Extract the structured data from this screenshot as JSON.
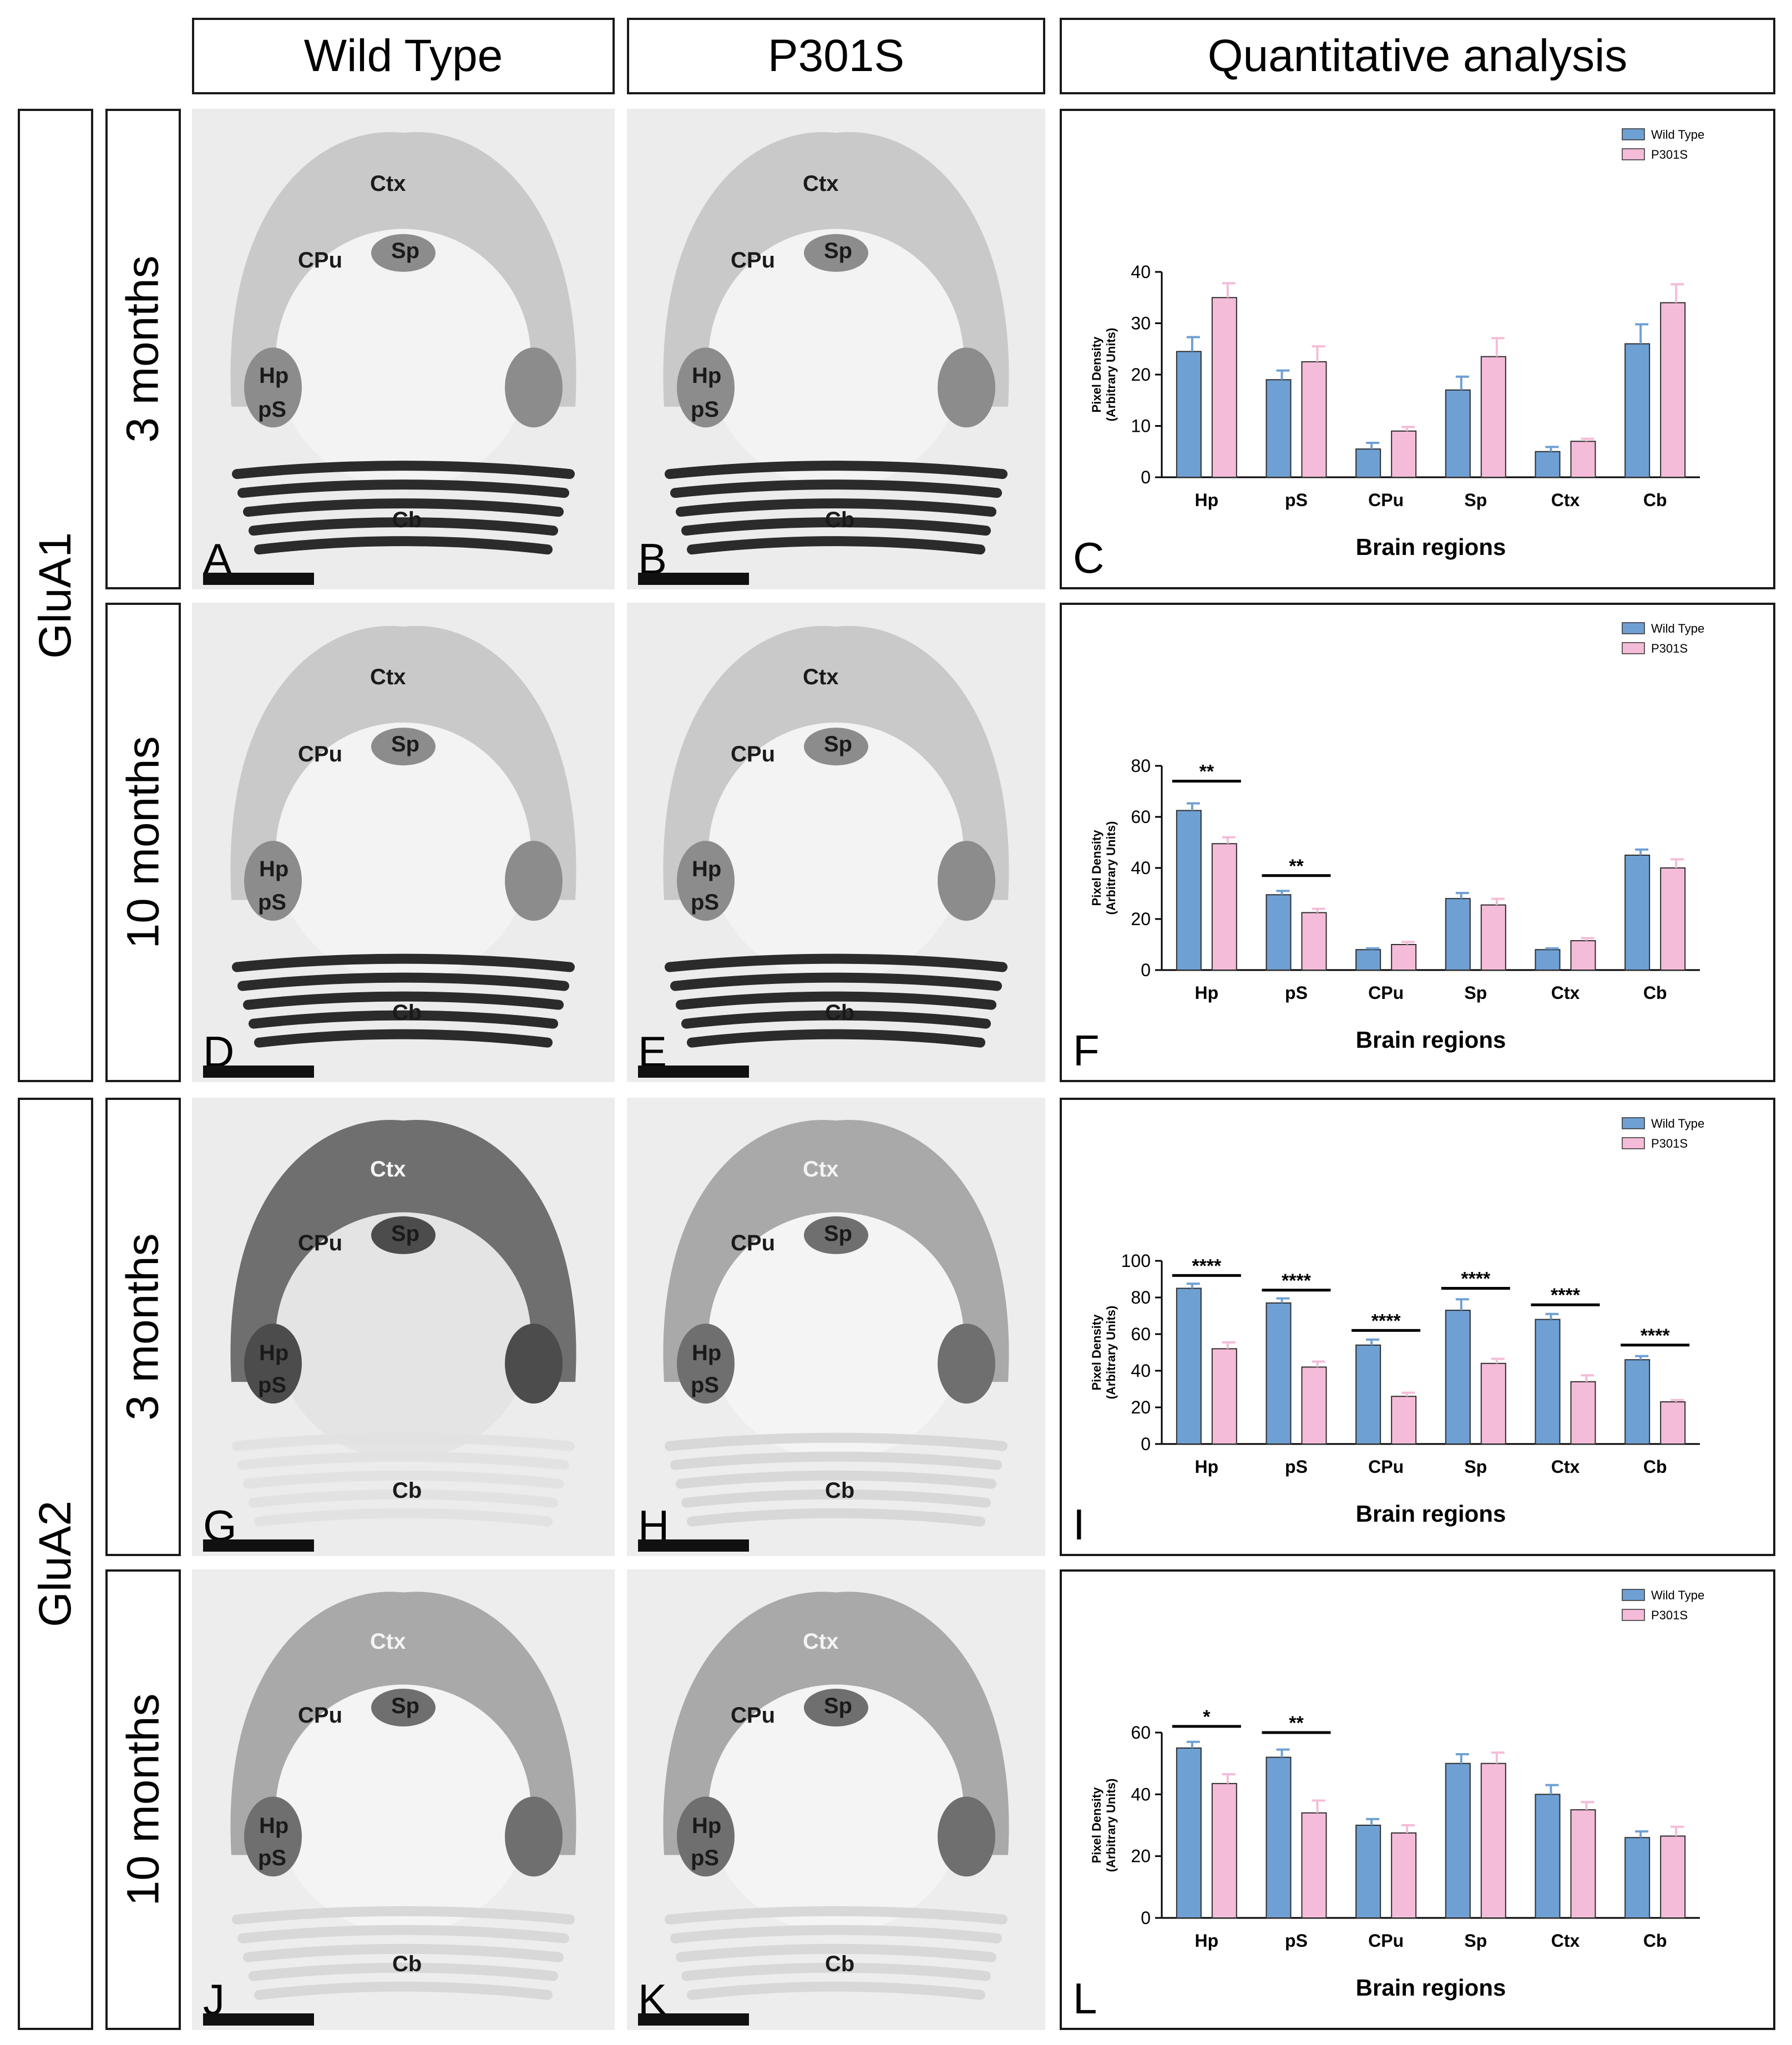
{
  "columns": [
    "Wild Type",
    "P301S",
    "Quantitative analysis"
  ],
  "groups": [
    "GluA1",
    "GluA2"
  ],
  "ages": [
    "3 months",
    "10 months",
    "3 months",
    "10 months"
  ],
  "colors": {
    "wild_type": "#6fa0d4",
    "p301s": "#f4bcd8",
    "bar_stroke": "#2e2e2e"
  },
  "micrographs": [
    {
      "letter": "A",
      "tone": "light",
      "labels": {
        "ctx": "Ctx",
        "cpu": "CPu",
        "sp": "Sp",
        "hp": "Hp",
        "ps": "pS",
        "cb": "Cb"
      }
    },
    {
      "letter": "B",
      "tone": "light",
      "labels": {
        "ctx": "Ctx",
        "cpu": "CPu",
        "sp": "Sp",
        "hp": "Hp",
        "ps": "pS",
        "cb": "Cb"
      }
    },
    {
      "letter": "D",
      "tone": "light",
      "labels": {
        "ctx": "Ctx",
        "cpu": "CPu",
        "sp": "Sp",
        "hp": "Hp",
        "ps": "pS",
        "cb": "Cb"
      }
    },
    {
      "letter": "E",
      "tone": "light",
      "labels": {
        "ctx": "Ctx",
        "cpu": "CPu",
        "sp": "Sp",
        "hp": "Hp",
        "ps": "pS",
        "cb": "Cb"
      }
    },
    {
      "letter": "G",
      "tone": "dark",
      "labels": {
        "ctx": "Ctx",
        "cpu": "CPu",
        "sp": "Sp",
        "hp": "Hp",
        "ps": "pS",
        "cb": "Cb"
      }
    },
    {
      "letter": "H",
      "tone": "medium",
      "labels": {
        "ctx": "Ctx",
        "cpu": "CPu",
        "sp": "Sp",
        "hp": "Hp",
        "ps": "pS",
        "cb": "Cb"
      }
    },
    {
      "letter": "J",
      "tone": "medium",
      "labels": {
        "ctx": "Ctx",
        "cpu": "CPu",
        "sp": "Sp",
        "hp": "Hp",
        "ps": "pS",
        "cb": "Cb"
      }
    },
    {
      "letter": "K",
      "tone": "medium",
      "labels": {
        "ctx": "Ctx",
        "cpu": "CPu",
        "sp": "Sp",
        "hp": "Hp",
        "ps": "pS",
        "cb": "Cb"
      }
    }
  ],
  "chart_data": [
    {
      "panel": "C",
      "type": "bar",
      "categories": [
        "Hp",
        "pS",
        "CPu",
        "Sp",
        "Ctx",
        "Cb"
      ],
      "series": [
        {
          "name": "Wild Type",
          "values": [
            24.5,
            19,
            5.5,
            17,
            5,
            26
          ],
          "errors": [
            2.8,
            1.8,
            1.2,
            2.6,
            0.9,
            3.8
          ]
        },
        {
          "name": "P301S",
          "values": [
            35,
            22.5,
            9,
            23.5,
            7,
            34
          ],
          "errors": [
            2.8,
            3,
            0.8,
            3.6,
            0.5,
            3.6
          ]
        }
      ],
      "significance": [],
      "xlabel": "Brain regions",
      "ylabel": "Pixel Density (Arbitrary Units)",
      "ylabel_lines": [
        "Pixel Density",
        "(Arbitrary Units)"
      ],
      "ylim": [
        0,
        40
      ],
      "yticks": [
        "0",
        "10",
        "20",
        "30",
        "40"
      ],
      "legend": "top-right"
    },
    {
      "panel": "F",
      "type": "bar",
      "categories": [
        "Hp",
        "pS",
        "CPu",
        "Sp",
        "Ctx",
        "Cb"
      ],
      "series": [
        {
          "name": "Wild Type",
          "values": [
            62.5,
            29.5,
            8,
            28,
            8,
            45
          ],
          "errors": [
            2.8,
            1.5,
            0.5,
            2.2,
            0.5,
            2.2
          ]
        },
        {
          "name": "P301S",
          "values": [
            49.5,
            22.5,
            10,
            25.5,
            11.5,
            40
          ],
          "errors": [
            2.5,
            1.5,
            1,
            2.4,
            1,
            3.4
          ]
        }
      ],
      "significance": [
        {
          "category": 0,
          "label": "**",
          "y": 74
        },
        {
          "category": 1,
          "label": "**",
          "y": 37
        }
      ],
      "xlabel": "Brain regions",
      "ylabel": "Pixel Density (Arbitrary Units)",
      "ylabel_lines": [
        "Pixel Density",
        "(Arbitrary Units)"
      ],
      "ylim": [
        0,
        80
      ],
      "yticks": [
        "0",
        "20",
        "40",
        "60",
        "80"
      ],
      "legend": "top-right"
    },
    {
      "panel": "I",
      "type": "bar",
      "categories": [
        "Hp",
        "pS",
        "CPu",
        "Sp",
        "Ctx",
        "Cb"
      ],
      "series": [
        {
          "name": "Wild Type",
          "values": [
            85,
            77,
            54,
            73,
            68,
            46
          ],
          "errors": [
            2.5,
            2.5,
            3,
            6,
            3,
            2
          ]
        },
        {
          "name": "P301S",
          "values": [
            52,
            42,
            26,
            44,
            34,
            23
          ],
          "errors": [
            3.5,
            3,
            2,
            2.5,
            3.5,
            1
          ]
        }
      ],
      "significance": [
        {
          "category": 0,
          "label": "****",
          "y": 92
        },
        {
          "category": 1,
          "label": "****",
          "y": 84
        },
        {
          "category": 2,
          "label": "****",
          "y": 62
        },
        {
          "category": 3,
          "label": "****",
          "y": 85
        },
        {
          "category": 4,
          "label": "****",
          "y": 76
        },
        {
          "category": 5,
          "label": "****",
          "y": 54
        }
      ],
      "xlabel": "Brain regions",
      "ylabel": "Pixel Density (Arbitrary Units)",
      "ylabel_lines": [
        "Pixel Density",
        "(Arbitrary Units)"
      ],
      "ylim": [
        0,
        100
      ],
      "yticks": [
        "0",
        "20",
        "40",
        "60",
        "80",
        "100"
      ],
      "legend": "top-right"
    },
    {
      "panel": "L",
      "type": "bar",
      "categories": [
        "Hp",
        "pS",
        "CPu",
        "Sp",
        "Ctx",
        "Cb"
      ],
      "series": [
        {
          "name": "Wild Type",
          "values": [
            55,
            52,
            30,
            50,
            40,
            26
          ],
          "errors": [
            2,
            2.5,
            2,
            3,
            3,
            2
          ]
        },
        {
          "name": "P301S",
          "values": [
            43.5,
            34,
            27.5,
            50,
            35,
            26.5
          ],
          "errors": [
            3,
            4,
            2.5,
            3.5,
            2.5,
            3
          ]
        }
      ],
      "significance": [
        {
          "category": 0,
          "label": "*",
          "y": 62
        },
        {
          "category": 1,
          "label": "**",
          "y": 60
        }
      ],
      "xlabel": "Brain regions",
      "ylabel": "Pixel Density (Arbitrary Units)",
      "ylabel_lines": [
        "Pixel Density",
        "(Arbitrary Units)"
      ],
      "ylim": [
        0,
        60
      ],
      "yticks": [
        "0",
        "20",
        "40",
        "60"
      ],
      "legend": "top-right"
    }
  ]
}
